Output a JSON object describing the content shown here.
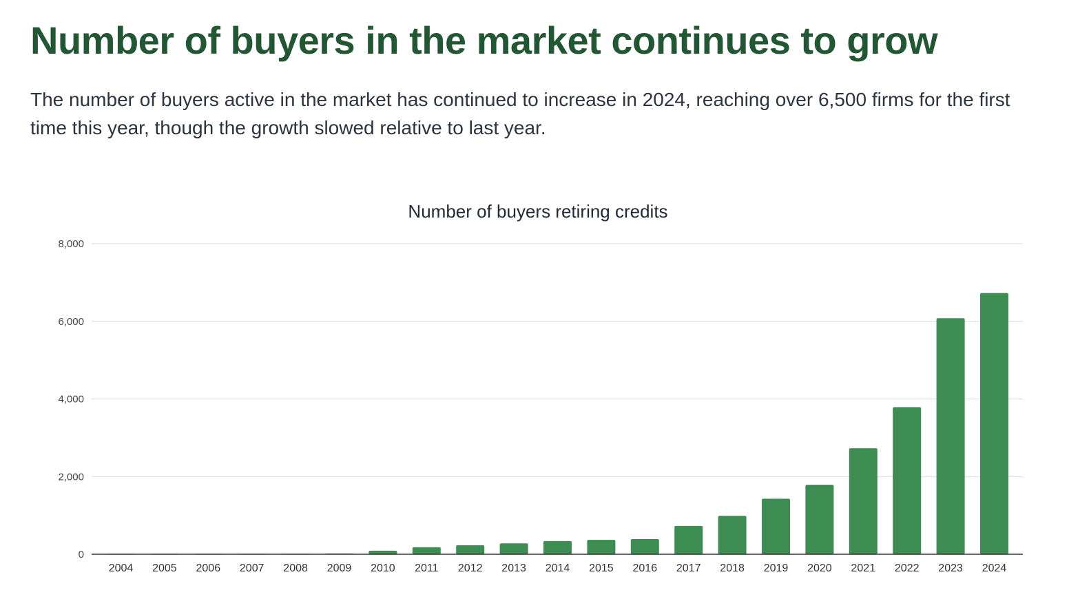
{
  "headline": "Number of buyers in the market continues to grow",
  "subtitle": "The number of buyers active in the market has continued to increase in 2024, reaching over 6,500 firms for the first time this year, though the growth slowed relative to last year.",
  "colors": {
    "headline": "#215732",
    "bar": "#3d8c52"
  },
  "chart_data": {
    "type": "bar",
    "title": "Number of buyers retiring credits",
    "xlabel": "",
    "ylabel": "",
    "ylim": [
      0,
      8000
    ],
    "yticks": [
      0,
      2000,
      4000,
      6000,
      8000
    ],
    "ytick_labels": [
      "0",
      "2,000",
      "4,000",
      "6,000",
      "8,000"
    ],
    "grid": true,
    "categories": [
      "2004",
      "2005",
      "2006",
      "2007",
      "2008",
      "2009",
      "2010",
      "2011",
      "2012",
      "2013",
      "2014",
      "2015",
      "2016",
      "2017",
      "2018",
      "2019",
      "2020",
      "2021",
      "2022",
      "2023",
      "2024"
    ],
    "values": [
      2,
      3,
      4,
      5,
      8,
      20,
      90,
      180,
      230,
      280,
      340,
      370,
      390,
      730,
      990,
      1430,
      1790,
      2730,
      3790,
      6080,
      6730
    ]
  }
}
